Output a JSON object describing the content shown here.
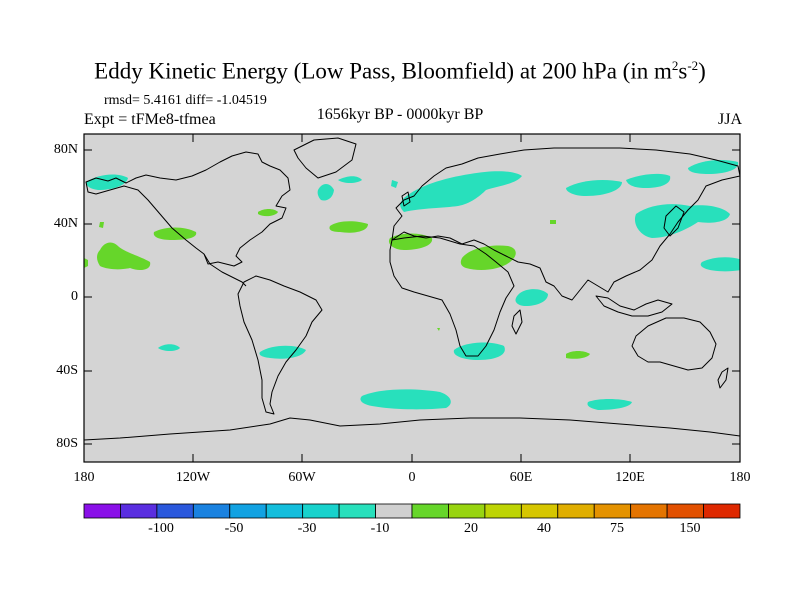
{
  "header": {
    "title_main": "Eddy Kinetic Energy (Low Pass, Bloomfield) at 200 hPa (in m",
    "title_sup1": "2",
    "title_mid": "s",
    "title_sup2": "-2",
    "title_end": ")",
    "stats": "rmsd= 5.4161  diff= -1.04519",
    "experiment": "Expt = tFMe8-tfmea",
    "period": "1656kyr BP - 0000kyr BP",
    "season": "JJA"
  },
  "map": {
    "background_color": "#d4d4d4",
    "lat_labels": [
      "80N",
      "40N",
      "0",
      "40S",
      "80S"
    ],
    "lon_labels": [
      "180",
      "120W",
      "60W",
      "0",
      "60E",
      "120E",
      "180"
    ]
  },
  "colorbar": {
    "colors": [
      "#8a10e8",
      "#5a2ee0",
      "#2a58dc",
      "#1a82e0",
      "#12a2e2",
      "#14bedc",
      "#18d2cc",
      "#28e0bc",
      "#d0d0d0",
      "#66d62a",
      "#98d410",
      "#bed404",
      "#d6c600",
      "#e0ae00",
      "#e49200",
      "#e47400",
      "#e25000",
      "#de2800"
    ],
    "labels": [
      "-100",
      "-50",
      "-30",
      "-10",
      "20",
      "40",
      "75",
      "150"
    ]
  },
  "colors": {
    "negative_anomaly": "#28e0bc",
    "positive_anomaly": "#66d62a",
    "coastline": "#000000"
  }
}
